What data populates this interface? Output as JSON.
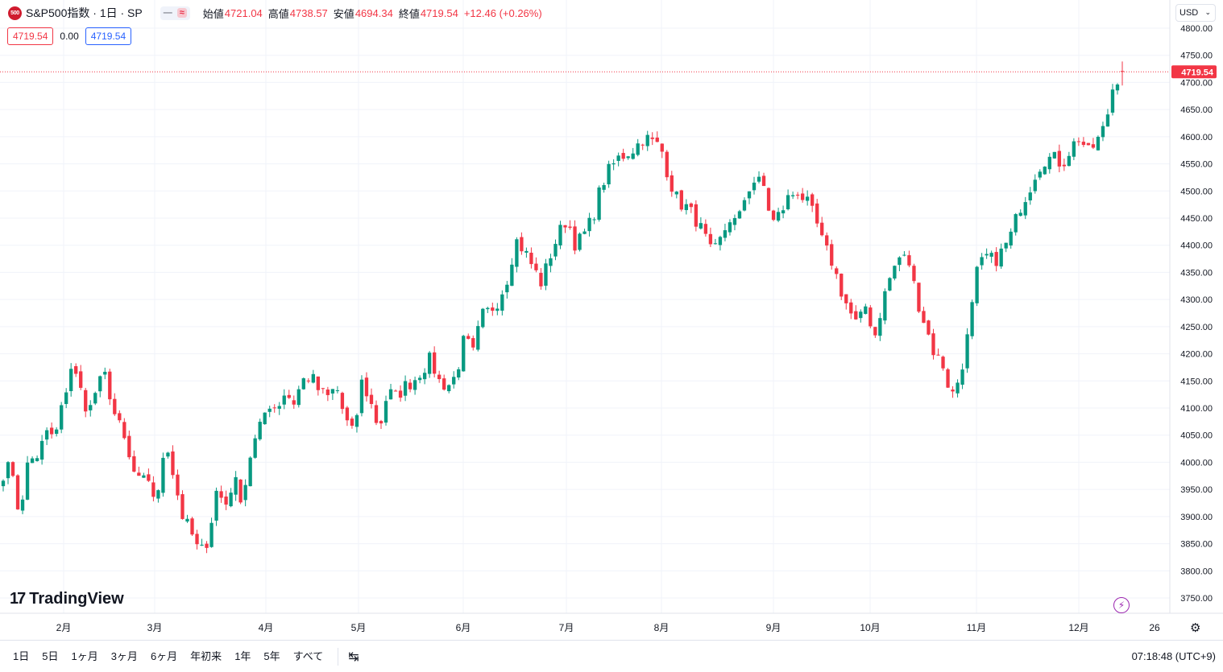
{
  "header": {
    "symbol_badge": "500",
    "title": "S&P500指数 · 1日 · SP",
    "toggle_minus": "—",
    "toggle_approx": "≈",
    "ohlc": {
      "open_label": "始値",
      "open": "4721.04",
      "high_label": "高値",
      "high": "4738.57",
      "low_label": "安値",
      "low": "4694.34",
      "close_label": "終値",
      "close": "4719.54",
      "change": "+12.46 (+0.26%)"
    },
    "price_box_1": "4719.54",
    "spread": "0.00",
    "price_box_2": "4719.54",
    "currency": "USD"
  },
  "branding": {
    "logo_text": "TradingView"
  },
  "bottom_bar": {
    "ranges": [
      "1日",
      "5日",
      "1ヶ月",
      "3ヶ月",
      "6ヶ月",
      "年初来",
      "1年",
      "5年",
      "すべて"
    ],
    "clock": "07:18:48 (UTC+9)"
  },
  "chart_data": {
    "type": "candlestick",
    "title": "S&P500指数 · 1日 · SP",
    "x_tick_labels": [
      "2月",
      "3月",
      "4月",
      "5月",
      "6月",
      "7月",
      "8月",
      "9月",
      "10月",
      "11月",
      "12月",
      "26"
    ],
    "y_range": [
      3725,
      4825
    ],
    "y_tick_labels": [
      "3750.00",
      "3800.00",
      "3850.00",
      "3900.00",
      "3950.00",
      "4000.00",
      "4050.00",
      "4100.00",
      "4150.00",
      "4200.00",
      "4250.00",
      "4300.00",
      "4350.00",
      "4400.00",
      "4450.00",
      "4500.00",
      "4550.00",
      "4600.00",
      "4650.00",
      "4700.00",
      "4750.00",
      "4800.00"
    ],
    "last_price": 4719.54,
    "last_price_label": "4719.54",
    "up_color": "#089981",
    "down_color": "#f23645",
    "grid": true,
    "waypoints_close": [
      3980,
      3995,
      3890,
      4020,
      4000,
      4060,
      4040,
      4110,
      4180,
      4135,
      4090,
      4140,
      4160,
      4090,
      4050,
      3990,
      3960,
      3970,
      3920,
      4050,
      3970,
      3900,
      3870,
      3830,
      3860,
      3950,
      3920,
      3970,
      3930,
      4020,
      4060,
      4110,
      4100,
      4130,
      4110,
      4150,
      4160,
      4130,
      4120,
      4140,
      4080,
      4050,
      4150,
      4110,
      4060,
      4130,
      4120,
      4140,
      4150,
      4170,
      4190,
      4150,
      4140,
      4160,
      4230,
      4200,
      4270,
      4280,
      4300,
      4340,
      4410,
      4390,
      4360,
      4330,
      4380,
      4420,
      4450,
      4400,
      4420,
      4450,
      4510,
      4540,
      4560,
      4570,
      4580,
      4600,
      4590,
      4580,
      4520,
      4480,
      4470,
      4450,
      4420,
      4380,
      4410,
      4450,
      4440,
      4500,
      4520,
      4510,
      4440,
      4460,
      4490,
      4500,
      4480,
      4450,
      4400,
      4370,
      4320,
      4280,
      4250,
      4290,
      4230,
      4300,
      4350,
      4380,
      4370,
      4300,
      4250,
      4200,
      4180,
      4120,
      4160,
      4240,
      4350,
      4380,
      4370,
      4390,
      4420,
      4470,
      4500,
      4540,
      4560,
      4560,
      4550,
      4580,
      4600,
      4570,
      4590,
      4620,
      4700,
      4719.54
    ]
  }
}
